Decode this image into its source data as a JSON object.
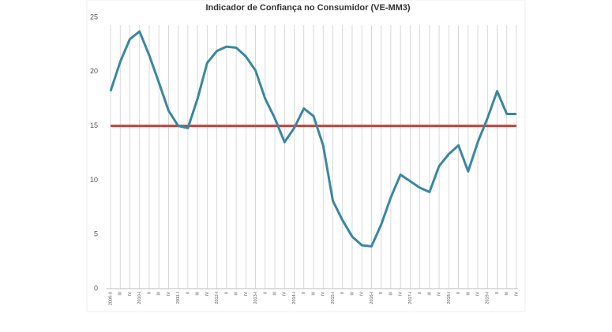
{
  "chart_data": {
    "type": "line",
    "title": "Indicador de Confiança no Consumidor (VE-MM3)",
    "categories": [
      "2009-II",
      "III",
      "IV",
      "2010-I",
      "II",
      "III",
      "IV",
      "2011-I",
      "II",
      "III",
      "IV",
      "2012-I",
      "II",
      "III",
      "IV",
      "2013-I",
      "II",
      "III",
      "IV",
      "2014-I",
      "II",
      "III",
      "IV",
      "2015-I",
      "II",
      "III",
      "IV",
      "2016-I",
      "II",
      "III",
      "IV",
      "2017-I",
      "II",
      "III",
      "IV",
      "2018-I",
      "II",
      "III",
      "IV",
      "2019-I",
      "II",
      "III",
      "IV"
    ],
    "series": [
      {
        "color": "#3a87a0",
        "values": [
          18.2,
          20.9,
          23.0,
          23.7,
          21.5,
          19.0,
          16.4,
          15.0,
          14.8,
          17.5,
          20.8,
          21.9,
          22.3,
          22.2,
          21.4,
          20.1,
          17.5,
          15.7,
          13.5,
          14.8,
          16.6,
          15.9,
          13.2,
          8.1,
          6.3,
          4.8,
          4.0,
          3.9,
          5.9,
          8.4,
          10.5,
          9.9,
          9.3,
          8.9,
          11.3,
          12.4,
          13.2,
          10.8,
          13.5,
          15.7,
          18.2,
          16.1,
          16.1
        ]
      }
    ],
    "reference": {
      "value": 15,
      "color": "#c9403a"
    },
    "ylim": [
      0,
      25
    ],
    "yticks": [
      0,
      5,
      10,
      15,
      20,
      25
    ],
    "grid": true
  }
}
